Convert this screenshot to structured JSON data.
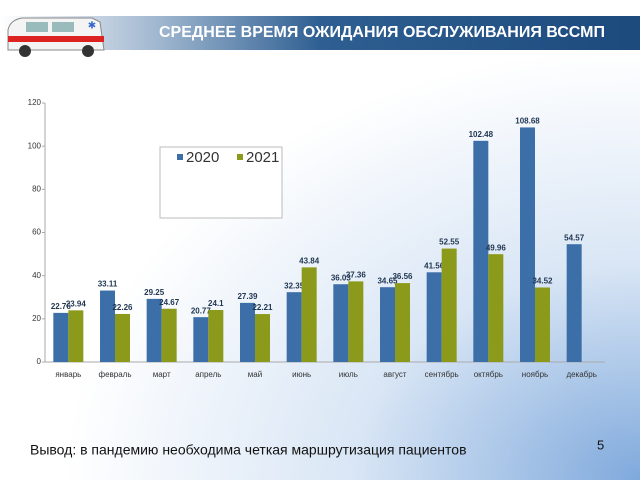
{
  "chart_data": {
    "type": "bar",
    "title": "СРЕДНЕЕ ВРЕМЯ ОЖИДАНИЯ ОБСЛУЖИВАНИЯ ВССМП",
    "categories": [
      "январь",
      "февраль",
      "март",
      "апрель",
      "май",
      "июнь",
      "июль",
      "август",
      "сентябрь",
      "октябрь",
      "ноябрь",
      "декабрь"
    ],
    "series": [
      {
        "name": "2020",
        "color": "#3c6ea8",
        "values": [
          22.76,
          33.11,
          29.25,
          20.77,
          27.39,
          32.35,
          36.03,
          34.65,
          41.56,
          102.48,
          108.68,
          54.57
        ]
      },
      {
        "name": "2021",
        "color": "#8c9a1c",
        "values": [
          23.94,
          22.26,
          24.67,
          24.1,
          22.21,
          43.84,
          37.36,
          36.56,
          52.55,
          49.96,
          34.52,
          null
        ]
      }
    ],
    "ylim": [
      0,
      120
    ],
    "yticks": [
      0,
      20,
      40,
      60,
      80,
      100,
      120
    ],
    "grid": false
  },
  "footer": "Вывод: в пандемию необходима четкая маршрутизация пациентов",
  "page_number": "5"
}
